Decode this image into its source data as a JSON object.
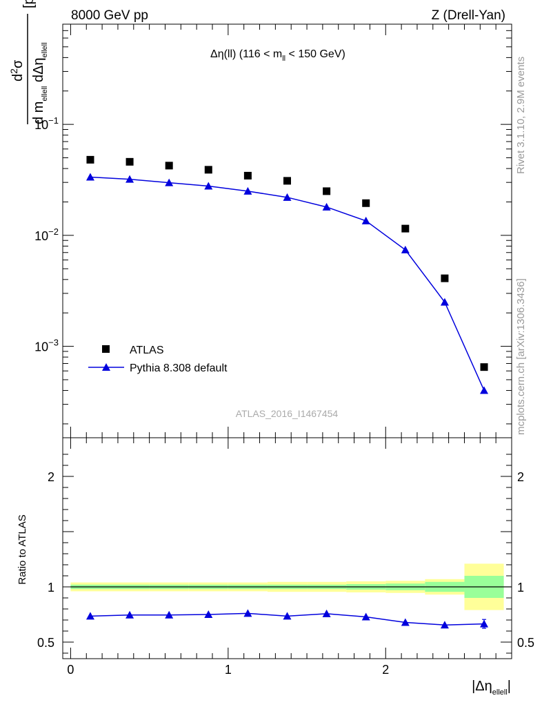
{
  "header": {
    "left": "8000 GeV pp",
    "right": "Z (Drell-Yan)"
  },
  "side_text": {
    "rivet": "Rivet 3.1.10,  2.9M events",
    "mcplots": "mcplots.cern.ch [arXiv:1306.3436]"
  },
  "analysis_id": "ATLAS_2016_I1467454",
  "chart_data": [
    {
      "type": "scatter",
      "panel": "main",
      "title": {
        "main": "Δη(ll) (116 < m",
        "sub": "ll",
        "tail": " < 150 GeV)"
      },
      "ylabel": {
        "num_d": "d",
        "num_sup": "2",
        "num_sigma": "σ",
        "den_d1": "d m",
        "den_sub1": "ellell",
        "den_d2": " dΔη",
        "den_sub2": "ellell",
        "unit": "[pb/GeV]"
      },
      "yscale": "log",
      "ylim": [
        0.00015,
        0.8
      ],
      "xlim": [
        -0.05,
        2.8
      ],
      "y_ticks": [
        {
          "value": 0.1,
          "base": "10",
          "exp": "−1"
        },
        {
          "value": 0.01,
          "base": "10",
          "exp": "−2"
        },
        {
          "value": 0.001,
          "base": "10",
          "exp": "−3"
        }
      ],
      "legend_position": "lower-left",
      "x": [
        0.125,
        0.375,
        0.625,
        0.875,
        1.125,
        1.375,
        1.625,
        1.875,
        2.125,
        2.375,
        2.625
      ],
      "series": [
        {
          "name": "ATLAS",
          "marker": "square",
          "color": "#000000",
          "values": [
            0.048,
            0.046,
            0.0425,
            0.039,
            0.0345,
            0.031,
            0.025,
            0.0195,
            0.0115,
            0.0041,
            0.00065
          ]
        },
        {
          "name": "Pythia 8.308 default",
          "marker": "triangle",
          "color": "#0000dd",
          "values": [
            0.0335,
            0.032,
            0.0298,
            0.0278,
            0.025,
            0.022,
            0.018,
            0.0135,
            0.0074,
            0.0025,
            0.0004
          ]
        }
      ]
    },
    {
      "type": "line",
      "panel": "ratio",
      "ylabel": "Ratio to ATLAS",
      "ylim": [
        0.35,
        2.35
      ],
      "y_ticks": [
        {
          "value": 2,
          "label": "2"
        },
        {
          "value": 1,
          "label": "1"
        },
        {
          "value": 0.5,
          "label": "0.5"
        }
      ],
      "x_ticks": [
        {
          "value": 0,
          "label": "0"
        },
        {
          "value": 1,
          "label": "1"
        },
        {
          "value": 2,
          "label": "2"
        }
      ],
      "xlabel": {
        "main": "|Δη",
        "sub": "ellell",
        "tail": "|"
      },
      "xlim": [
        -0.05,
        2.8
      ],
      "x": [
        0.125,
        0.375,
        0.625,
        0.875,
        1.125,
        1.375,
        1.625,
        1.875,
        2.125,
        2.375,
        2.625
      ],
      "bin_edges": [
        0.0,
        0.25,
        0.5,
        0.75,
        1.0,
        1.25,
        1.5,
        1.75,
        2.0,
        2.25,
        2.5,
        2.75
      ],
      "stat_band": {
        "color": "#99ff99",
        "lower": [
          0.98,
          0.98,
          0.98,
          0.98,
          0.98,
          0.98,
          0.98,
          0.975,
          0.97,
          0.955,
          0.9
        ],
        "upper": [
          1.02,
          1.02,
          1.02,
          1.02,
          1.02,
          1.02,
          1.02,
          1.025,
          1.03,
          1.045,
          1.1
        ]
      },
      "total_band": {
        "color": "#ffff99",
        "lower": [
          0.96,
          0.96,
          0.96,
          0.96,
          0.96,
          0.955,
          0.955,
          0.95,
          0.945,
          0.93,
          0.79
        ],
        "upper": [
          1.04,
          1.04,
          1.04,
          1.04,
          1.04,
          1.045,
          1.045,
          1.05,
          1.055,
          1.07,
          1.21
        ]
      },
      "series": [
        {
          "name": "Pythia 8.308 default",
          "color": "#0000dd",
          "values": [
            0.735,
            0.745,
            0.745,
            0.75,
            0.76,
            0.735,
            0.757,
            0.728,
            0.678,
            0.655,
            0.665
          ],
          "err": [
            0,
            0,
            0,
            0,
            0,
            0,
            0,
            0,
            0,
            0,
            0.04
          ]
        }
      ]
    }
  ]
}
